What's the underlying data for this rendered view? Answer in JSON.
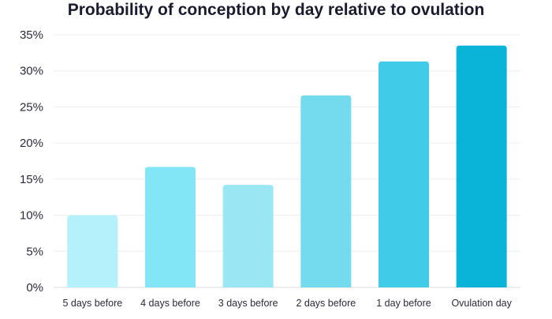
{
  "chart_data": {
    "type": "bar",
    "title": "Probability of conception by day relative to ovulation",
    "xlabel": "",
    "ylabel": "",
    "categories": [
      "5 days before",
      "4 days before",
      "3 days before",
      "2 days before",
      "1 day before",
      "Ovulation day"
    ],
    "values": [
      10,
      16.7,
      14.2,
      26.6,
      31.3,
      33.5
    ],
    "ylim": [
      0,
      35
    ],
    "yticks": [
      0,
      5,
      10,
      15,
      20,
      25,
      30,
      35
    ],
    "ytick_labels": [
      "0%",
      "5%",
      "10%",
      "15%",
      "20%",
      "25%",
      "30%",
      "35%"
    ],
    "grid": true,
    "legend": "none",
    "colors": [
      "#b5f1fb",
      "#82e6f7",
      "#9be6f3",
      "#74dbef",
      "#40cbe8",
      "#0ab4d8"
    ]
  }
}
